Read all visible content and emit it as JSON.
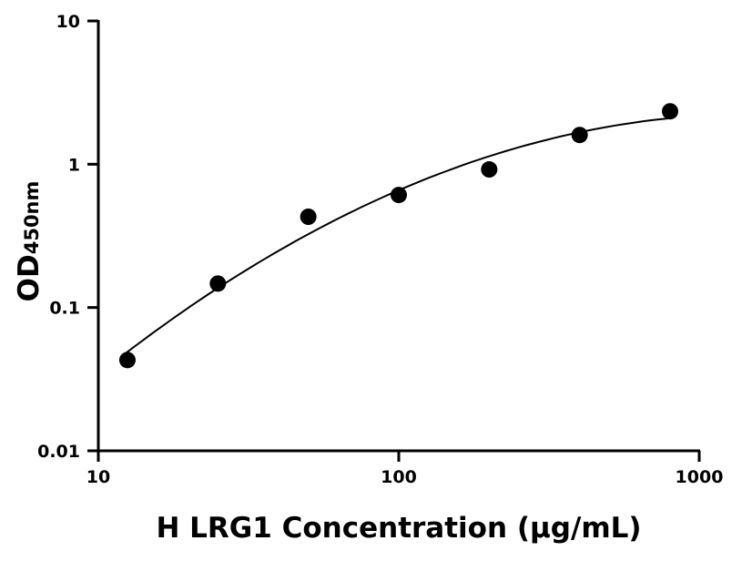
{
  "chart_data": {
    "type": "scatter",
    "title": "",
    "xlabel": "H LRG1 Concentration (µg/mL)",
    "ylabel": "OD",
    "ylabel_subscript": "450nm",
    "xscale": "log",
    "yscale": "log",
    "xlim": [
      10,
      1000
    ],
    "ylim": [
      0.01,
      10
    ],
    "xticks": [
      {
        "value": 10,
        "label": "10"
      },
      {
        "value": 100,
        "label": "100"
      },
      {
        "value": 1000,
        "label": "1000"
      }
    ],
    "yticks": [
      {
        "value": 0.01,
        "label": "0.01"
      },
      {
        "value": 0.1,
        "label": "0.1"
      },
      {
        "value": 1,
        "label": "1"
      },
      {
        "value": 10,
        "label": "10"
      }
    ],
    "grid": false,
    "series": [
      {
        "x": [
          12.5,
          25,
          50,
          100,
          200,
          400,
          800
        ],
        "y": [
          0.043,
          0.147,
          0.43,
          0.61,
          0.92,
          1.6,
          2.34
        ],
        "marker": "circle",
        "color": "#000000",
        "fit_line": true
      }
    ]
  }
}
